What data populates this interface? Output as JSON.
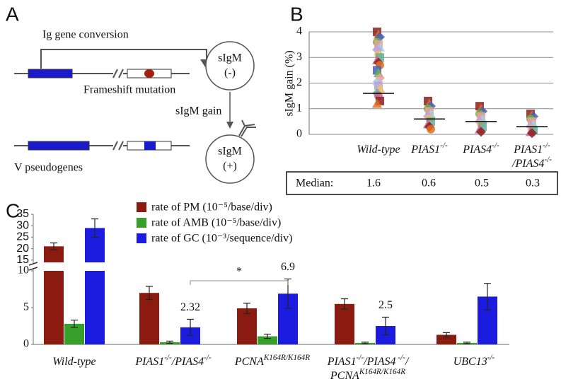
{
  "panel_labels": [
    "A",
    "B",
    "C"
  ],
  "diagram": {
    "conversion_label": "Ig gene conversion",
    "mutation_label": "Frameshift mutation",
    "gain_label": "sIgM gain",
    "pseudogenes_label": "V pseudogenes",
    "cell_negative": [
      "sIgM",
      "(-)"
    ],
    "cell_positive": [
      "sIgM",
      "(+)"
    ]
  },
  "chart_data": [
    {
      "type": "strip",
      "ylabel": "sIgM gain (%)",
      "categories": [
        "Wild-type",
        "PIAS1-/-",
        "PIAS4-/-",
        "PIAS1-/-/PIAS4-/-"
      ],
      "values": [
        [
          4.0,
          3.9,
          3.8,
          3.6,
          3.5,
          3.4,
          3.3,
          3.1,
          3.0,
          2.9,
          2.8,
          2.7,
          2.5,
          2.4,
          2.2,
          2.0,
          1.9,
          1.8,
          1.6,
          1.5,
          1.3,
          1.2
        ],
        [
          1.3,
          1.2,
          1.1,
          1.0,
          0.9,
          0.8,
          0.7,
          0.6,
          0.5,
          0.4,
          0.3,
          0.2
        ],
        [
          1.1,
          1.0,
          0.9,
          0.8,
          0.7,
          0.6,
          0.5,
          0.4,
          0.3,
          0.2,
          0.1
        ],
        [
          0.8,
          0.75,
          0.7,
          0.6,
          0.5,
          0.4,
          0.3,
          0.2,
          0.15,
          0.1,
          0.05
        ]
      ],
      "point_colors": [
        "#8b2020",
        "#e07020",
        "#4060c0",
        "#70b040",
        "#e8a0a0",
        "#a0d0e0",
        "#c0a0e0",
        "#f0c060",
        "#60b0a0",
        "#d06090"
      ],
      "median_label": "Median:",
      "medians": [
        1.6,
        0.6,
        0.5,
        0.3
      ],
      "ylim": [
        0,
        4
      ],
      "yticks": [
        0,
        1,
        2,
        3,
        4
      ],
      "grid": true
    },
    {
      "type": "bar",
      "categories": [
        "Wild-type",
        "PIAS1-/-/PIAS4-/-",
        "PCNAK164R/K164R",
        [
          "PIAS1-/-/PIAS4 -/-/",
          "PCNAK164R/K164R"
        ],
        "UBC13-/-"
      ],
      "series": [
        {
          "name": "rate of PM (10⁻⁵/base/div)",
          "color": "#8b1a10",
          "values": [
            21,
            7.0,
            4.9,
            5.5,
            1.3
          ],
          "errors": [
            1.5,
            0.9,
            0.7,
            0.7,
            0.3
          ]
        },
        {
          "name": "rate of AMB (10⁻⁵/base/div)",
          "color": "#36a02a",
          "values": [
            2.8,
            0.3,
            1.1,
            0.2,
            0.2
          ],
          "errors": [
            0.5,
            0.15,
            0.3,
            0.1,
            0.1
          ]
        },
        {
          "name": "rate of GC (10⁻³/sequence/div)",
          "color": "#1c1ce0",
          "values": [
            29,
            2.32,
            6.9,
            2.5,
            6.5
          ],
          "errors": [
            4,
            1.1,
            2.0,
            1.2,
            1.8
          ],
          "data_labels": [
            false,
            true,
            true,
            true,
            false
          ]
        }
      ],
      "annotation": "*",
      "ylim": [
        0,
        35
      ],
      "ybreak": [
        10,
        14
      ],
      "yticks": [
        0,
        5,
        10,
        15,
        20,
        25,
        30,
        35
      ]
    }
  ]
}
